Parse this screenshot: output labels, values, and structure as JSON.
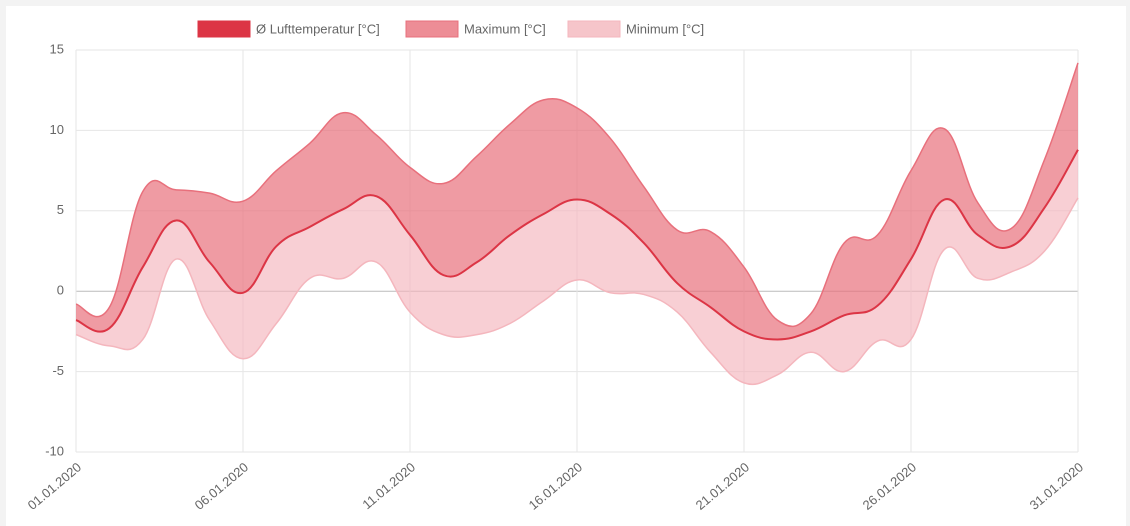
{
  "chart_data": {
    "type": "line",
    "categories": [
      "01.01.2020",
      null,
      null,
      null,
      null,
      "06.01.2020",
      null,
      null,
      null,
      null,
      "11.01.2020",
      null,
      null,
      null,
      null,
      "16.01.2020",
      null,
      null,
      null,
      null,
      "21.01.2020",
      null,
      null,
      null,
      null,
      "26.01.2020",
      null,
      null,
      null,
      null,
      "31.01.2020"
    ],
    "series": [
      {
        "name": "Ø Lufttemperatur [°C]",
        "color": "#dc3545",
        "values": [
          -1.8,
          -2.3,
          1.5,
          4.4,
          1.8,
          -0.1,
          2.8,
          4.0,
          5.1,
          5.9,
          3.5,
          1.0,
          1.8,
          3.5,
          4.8,
          5.7,
          4.8,
          3.0,
          0.5,
          -1.0,
          -2.5,
          -3.0,
          -2.5,
          -1.5,
          -0.9,
          2.0,
          5.7,
          3.5,
          2.8,
          5.2,
          8.8
        ]
      },
      {
        "name": "Maximum [°C]",
        "color": "#e8707c",
        "values": [
          -0.8,
          -1.0,
          6.2,
          6.3,
          6.1,
          5.6,
          7.5,
          9.2,
          11.1,
          9.7,
          7.7,
          6.7,
          8.4,
          10.4,
          11.9,
          11.4,
          9.5,
          6.5,
          3.8,
          3.7,
          1.5,
          -1.8,
          -1.4,
          3.0,
          3.5,
          7.5,
          10.1,
          5.5,
          3.9,
          8.2,
          14.2
        ]
      },
      {
        "name": "Minimum [°C]",
        "color": "#f4b6bd",
        "values": [
          -2.7,
          -3.4,
          -3.0,
          2.0,
          -1.8,
          -4.2,
          -2.0,
          0.8,
          0.8,
          1.8,
          -1.3,
          -2.7,
          -2.7,
          -2.0,
          -0.6,
          0.7,
          -0.1,
          -0.2,
          -1.3,
          -3.8,
          -5.7,
          -5.2,
          -3.8,
          -5.0,
          -3.1,
          -3.0,
          2.6,
          0.8,
          1.2,
          2.5,
          5.8
        ]
      }
    ],
    "ylim": [
      -10,
      15
    ],
    "yticks": [
      -10,
      -5,
      0,
      5,
      10,
      15
    ],
    "grid": true,
    "legend": "top"
  }
}
